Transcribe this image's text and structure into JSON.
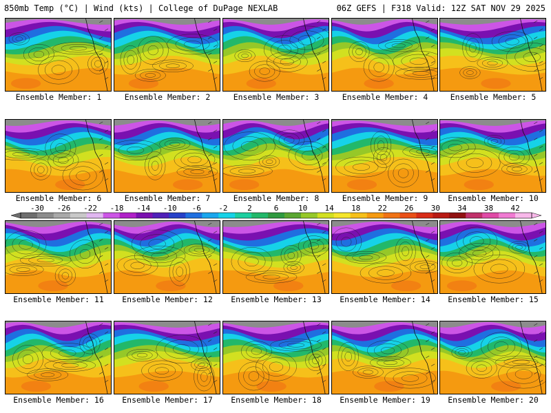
{
  "header": {
    "title": "850mb Temp (°C) | Wind (kts) | College of DuPage NEXLAB",
    "run": "06Z GEFS | F318 Valid: 12Z SAT NOV 29 2025"
  },
  "colorbar": {
    "ticks": [
      "-30",
      "-26",
      "-22",
      "-18",
      "-14",
      "-10",
      "-6",
      "-2",
      "2",
      "6",
      "10",
      "14",
      "18",
      "22",
      "26",
      "30",
      "34",
      "38",
      "42"
    ],
    "colors": [
      "#6e6e6e",
      "#8c8c8c",
      "#a9a9a9",
      "#c8c8c8",
      "#e0b6f0",
      "#cc55e6",
      "#b020c8",
      "#7a10b0",
      "#5020b8",
      "#2640c8",
      "#1f6fe0",
      "#19a6ee",
      "#16d2e8",
      "#1ccfa0",
      "#22b86a",
      "#2f9a40",
      "#5aa630",
      "#96c828",
      "#d2e020",
      "#f5e62a",
      "#f6c01a",
      "#f59a10",
      "#f07214",
      "#ea5018",
      "#d82c18",
      "#b81a14",
      "#901010",
      "#c0306a",
      "#e04aa6",
      "#f07ad2",
      "#f8b8ea"
    ]
  },
  "panels": [
    {
      "label": "Ensemble Member: 1"
    },
    {
      "label": "Ensemble Member: 2"
    },
    {
      "label": "Ensemble Member: 3"
    },
    {
      "label": "Ensemble Member: 4"
    },
    {
      "label": "Ensemble Member: 5"
    },
    {
      "label": "Ensemble Member: 6"
    },
    {
      "label": "Ensemble Member: 7"
    },
    {
      "label": "Ensemble Member: 8"
    },
    {
      "label": "Ensemble Member: 9"
    },
    {
      "label": "Ensemble Member: 10"
    },
    {
      "label": "Ensemble Member: 11"
    },
    {
      "label": "Ensemble Member: 12"
    },
    {
      "label": "Ensemble Member: 13"
    },
    {
      "label": "Ensemble Member: 14"
    },
    {
      "label": "Ensemble Member: 15"
    },
    {
      "label": "Ensemble Member: 16"
    },
    {
      "label": "Ensemble Member: 17"
    },
    {
      "label": "Ensemble Member: 18"
    },
    {
      "label": "Ensemble Member: 19"
    },
    {
      "label": "Ensemble Member: 20"
    }
  ]
}
